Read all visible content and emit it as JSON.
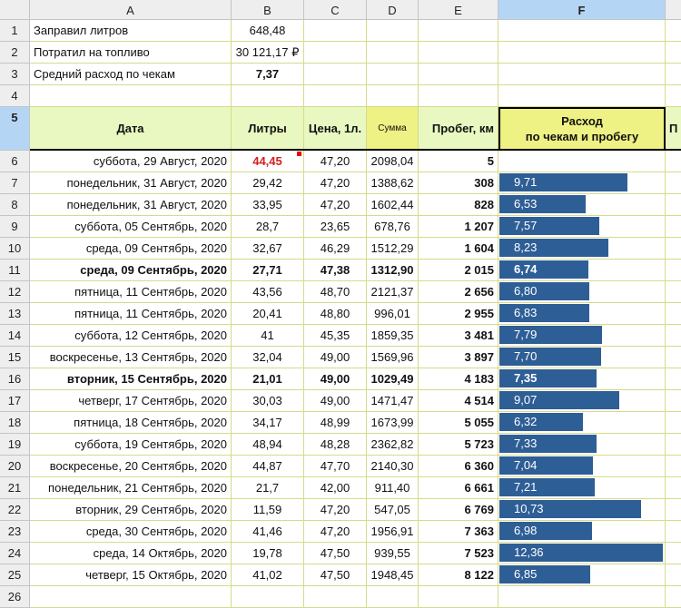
{
  "columns": [
    "A",
    "B",
    "C",
    "D",
    "E",
    "F",
    ""
  ],
  "selected_column": "F",
  "top_rows": [
    {
      "label": "Заправил литров",
      "value": "648,48",
      "bold": false
    },
    {
      "label": "Потратил на топливо",
      "value": "30 121,17 ₽",
      "bold": false
    },
    {
      "label": "Средний расход по чекам",
      "value": "7,37",
      "bold": true
    }
  ],
  "headers": {
    "date": "Дата",
    "liters": "Литры",
    "price": "Цена, 1л.",
    "sum": "Сумма",
    "mileage": "Пробег, км",
    "consumption_line1": "Расход",
    "consumption_line2": "по чекам и пробегу",
    "next": "П"
  },
  "colors": {
    "bar": "#2e5e96",
    "header_fill": "#e9f8c1",
    "highlight_fill": "#eef183",
    "alert_text": "#d42020"
  },
  "bar_scale_max": 12.36,
  "rows": [
    {
      "n": 6,
      "date": "суббота, 29 Август, 2020",
      "liters": "44,45",
      "price": "47,20",
      "sum": "2098,04",
      "mileage": "5",
      "cons": "",
      "bold": false,
      "red": true
    },
    {
      "n": 7,
      "date": "понедельник, 31 Август, 2020",
      "liters": "29,42",
      "price": "47,20",
      "sum": "1388,62",
      "mileage": "308",
      "cons": "9,71",
      "bold": false
    },
    {
      "n": 8,
      "date": "понедельник, 31 Август, 2020",
      "liters": "33,95",
      "price": "47,20",
      "sum": "1602,44",
      "mileage": "828",
      "cons": "6,53",
      "bold": false
    },
    {
      "n": 9,
      "date": "суббота, 05 Сентябрь, 2020",
      "liters": "28,7",
      "price": "23,65",
      "sum": "678,76",
      "mileage": "1 207",
      "cons": "7,57",
      "bold": false
    },
    {
      "n": 10,
      "date": "среда, 09 Сентябрь, 2020",
      "liters": "32,67",
      "price": "46,29",
      "sum": "1512,29",
      "mileage": "1 604",
      "cons": "8,23",
      "bold": false
    },
    {
      "n": 11,
      "date": "среда, 09 Сентябрь, 2020",
      "liters": "27,71",
      "price": "47,38",
      "sum": "1312,90",
      "mileage": "2 015",
      "cons": "6,74",
      "bold": true
    },
    {
      "n": 12,
      "date": "пятница, 11 Сентябрь, 2020",
      "liters": "43,56",
      "price": "48,70",
      "sum": "2121,37",
      "mileage": "2 656",
      "cons": "6,80",
      "bold": false
    },
    {
      "n": 13,
      "date": "пятница, 11 Сентябрь, 2020",
      "liters": "20,41",
      "price": "48,80",
      "sum": "996,01",
      "mileage": "2 955",
      "cons": "6,83",
      "bold": false
    },
    {
      "n": 14,
      "date": "суббота, 12 Сентябрь, 2020",
      "liters": "41",
      "price": "45,35",
      "sum": "1859,35",
      "mileage": "3 481",
      "cons": "7,79",
      "bold": false
    },
    {
      "n": 15,
      "date": "воскресенье, 13 Сентябрь, 2020",
      "liters": "32,04",
      "price": "49,00",
      "sum": "1569,96",
      "mileage": "3 897",
      "cons": "7,70",
      "bold": false
    },
    {
      "n": 16,
      "date": "вторник, 15 Сентябрь, 2020",
      "liters": "21,01",
      "price": "49,00",
      "sum": "1029,49",
      "mileage": "4 183",
      "cons": "7,35",
      "bold": true
    },
    {
      "n": 17,
      "date": "четверг, 17 Сентябрь, 2020",
      "liters": "30,03",
      "price": "49,00",
      "sum": "1471,47",
      "mileage": "4 514",
      "cons": "9,07",
      "bold": false
    },
    {
      "n": 18,
      "date": "пятница, 18 Сентябрь, 2020",
      "liters": "34,17",
      "price": "48,99",
      "sum": "1673,99",
      "mileage": "5 055",
      "cons": "6,32",
      "bold": false
    },
    {
      "n": 19,
      "date": "суббота, 19 Сентябрь, 2020",
      "liters": "48,94",
      "price": "48,28",
      "sum": "2362,82",
      "mileage": "5 723",
      "cons": "7,33",
      "bold": false
    },
    {
      "n": 20,
      "date": "воскресенье, 20 Сентябрь, 2020",
      "liters": "44,87",
      "price": "47,70",
      "sum": "2140,30",
      "mileage": "6 360",
      "cons": "7,04",
      "bold": false
    },
    {
      "n": 21,
      "date": "понедельник, 21 Сентябрь, 2020",
      "liters": "21,7",
      "price": "42,00",
      "sum": "911,40",
      "mileage": "6 661",
      "cons": "7,21",
      "bold": false
    },
    {
      "n": 22,
      "date": "вторник, 29 Сентябрь, 2020",
      "liters": "11,59",
      "price": "47,20",
      "sum": "547,05",
      "mileage": "6 769",
      "cons": "10,73",
      "bold": false
    },
    {
      "n": 23,
      "date": "среда, 30 Сентябрь, 2020",
      "liters": "41,46",
      "price": "47,20",
      "sum": "1956,91",
      "mileage": "7 363",
      "cons": "6,98",
      "bold": false
    },
    {
      "n": 24,
      "date": "среда, 14 Октябрь, 2020",
      "liters": "19,78",
      "price": "47,50",
      "sum": "939,55",
      "mileage": "7 523",
      "cons": "12,36",
      "bold": false
    },
    {
      "n": 25,
      "date": "четверг, 15 Октябрь, 2020",
      "liters": "41,02",
      "price": "47,50",
      "sum": "1948,45",
      "mileage": "8 122",
      "cons": "6,85",
      "bold": false
    }
  ],
  "row_numbers": [
    "1",
    "2",
    "3",
    "4",
    "5",
    "26"
  ]
}
